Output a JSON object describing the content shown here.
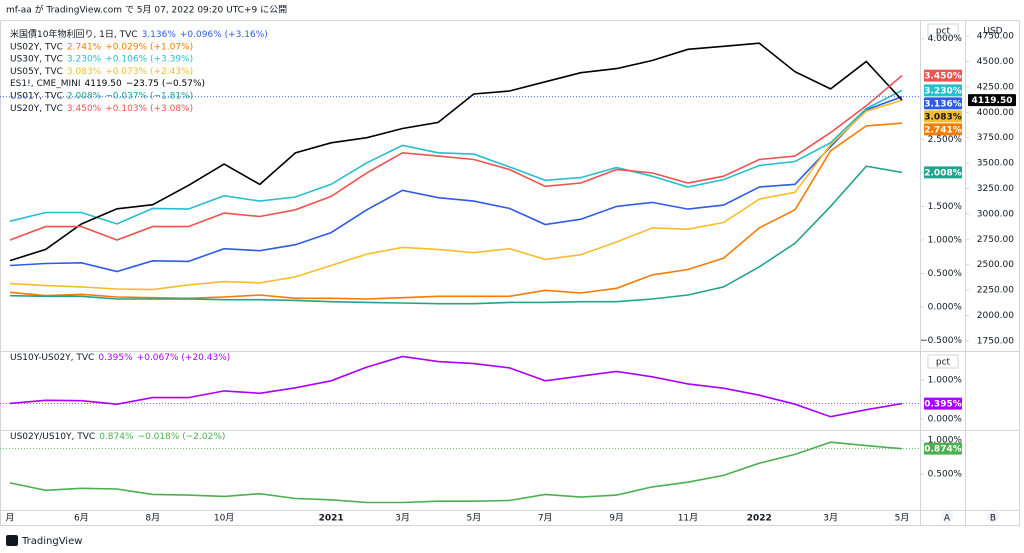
{
  "header": "mf-aa が TradingView.com で 5月 07, 2022 09:20 UTC+9 に公開",
  "footer": "TradingView",
  "buttons": [
    "A",
    "B"
  ],
  "chart_data": [
    {
      "type": "line",
      "y_unit": "pct",
      "y2_unit": "USD",
      "ylim": [
        -0.64,
        4.13
      ],
      "yticks": [
        {
          "value": -0.5,
          "label": "−0.500%"
        },
        {
          "value": 0,
          "label": "0.000%"
        },
        {
          "value": 0.5,
          "label": "0.500%"
        },
        {
          "value": 1,
          "label": "1.000%"
        },
        {
          "value": 1.5,
          "label": "1.500%"
        },
        {
          "value": 2,
          "label": "2.000%"
        },
        {
          "value": 2.5,
          "label": "2.500%"
        },
        {
          "value": 4,
          "label": "4.000%"
        }
      ],
      "y2lim": [
        1660,
        4810
      ],
      "y2ticks": [
        {
          "value": 1750,
          "label": "1750.00"
        },
        {
          "value": 2000,
          "label": "2000.00"
        },
        {
          "value": 2250,
          "label": "2250.00"
        },
        {
          "value": 2500,
          "label": "2500.00"
        },
        {
          "value": 2750,
          "label": "2750.00"
        },
        {
          "value": 3000,
          "label": "3000.00"
        },
        {
          "value": 3250,
          "label": "3250.00"
        },
        {
          "value": 3500,
          "label": "3500.00"
        },
        {
          "value": 3750,
          "label": "3750.00"
        },
        {
          "value": 4000,
          "label": "4000.00"
        },
        {
          "value": 4250,
          "label": "4250.00"
        },
        {
          "value": 4500,
          "label": "4500.00"
        },
        {
          "value": 4750,
          "label": "4750.00"
        }
      ],
      "series": [
        {
          "name": "米国債10年物利回り, 1日, TVC",
          "color": "#2e5ce6",
          "last_label": "3.136%",
          "change": "+0.096% (+3.16%)",
          "values": [
            0.62,
            0.65,
            0.66,
            0.53,
            0.69,
            0.68,
            0.87,
            0.84,
            0.93,
            1.11,
            1.45,
            1.74,
            1.63,
            1.58,
            1.47,
            1.23,
            1.31,
            1.5,
            1.56,
            1.46,
            1.52,
            1.79,
            1.83,
            2.39,
            2.94,
            3.136
          ]
        },
        {
          "name": "US02Y, TVC",
          "color": "#f57c00",
          "last_label": "2.741%",
          "change": "+0.029% (+1.07%)",
          "values": [
            0.22,
            0.17,
            0.19,
            0.15,
            0.14,
            0.13,
            0.15,
            0.18,
            0.13,
            0.13,
            0.12,
            0.14,
            0.16,
            0.16,
            0.16,
            0.25,
            0.21,
            0.28,
            0.48,
            0.56,
            0.73,
            1.18,
            1.45,
            2.33,
            2.7,
            2.741
          ]
        },
        {
          "name": "US30Y, TVC",
          "color": "#26bfcf",
          "last_label": "3.230%",
          "change": "+0.106% (+3.39%)",
          "values": [
            1.28,
            1.41,
            1.41,
            1.24,
            1.47,
            1.46,
            1.66,
            1.58,
            1.64,
            1.83,
            2.15,
            2.41,
            2.3,
            2.28,
            2.09,
            1.89,
            1.93,
            2.08,
            1.95,
            1.79,
            1.9,
            2.11,
            2.17,
            2.45,
            2.96,
            3.23
          ]
        },
        {
          "name": "US05Y, TVC",
          "color": "#f9bc2a",
          "last_label": "3.083%",
          "change": "+0.073% (+2.43%)",
          "values": [
            0.35,
            0.32,
            0.3,
            0.27,
            0.26,
            0.33,
            0.38,
            0.36,
            0.45,
            0.62,
            0.79,
            0.89,
            0.86,
            0.81,
            0.87,
            0.71,
            0.78,
            0.97,
            1.18,
            1.16,
            1.26,
            1.61,
            1.71,
            2.42,
            2.92,
            3.083
          ]
        },
        {
          "name": "ES1!, CME_MINI",
          "color": "#000000",
          "axis": "y2",
          "last_label": "4119.50",
          "change": "−23.75 (−0.57%)",
          "values": [
            2540,
            2650,
            2900,
            3050,
            3090,
            3280,
            3490,
            3290,
            3600,
            3700,
            3750,
            3840,
            3900,
            4180,
            4210,
            4300,
            4390,
            4430,
            4510,
            4620,
            4650,
            4680,
            4400,
            4230,
            4500,
            4119.5
          ]
        },
        {
          "name": "US01Y, TVC",
          "color": "#22a38f",
          "last_label": "2.008%",
          "change": "−0.037% (−1.81%)",
          "values": [
            0.17,
            0.16,
            0.16,
            0.12,
            0.12,
            0.12,
            0.11,
            0.11,
            0.1,
            0.08,
            0.07,
            0.06,
            0.05,
            0.05,
            0.07,
            0.07,
            0.08,
            0.08,
            0.12,
            0.18,
            0.3,
            0.6,
            0.95,
            1.5,
            2.1,
            2.008
          ]
        },
        {
          "name": "US20Y, TVC",
          "color": "#ef5350",
          "last_label": "3.450%",
          "change": "+0.103% (+3.08%)",
          "values": [
            1.0,
            1.2,
            1.2,
            1.0,
            1.2,
            1.2,
            1.4,
            1.35,
            1.45,
            1.65,
            2.0,
            2.3,
            2.25,
            2.2,
            2.05,
            1.8,
            1.85,
            2.05,
            2.0,
            1.85,
            1.95,
            2.2,
            2.25,
            2.6,
            3.0,
            3.45
          ]
        }
      ]
    },
    {
      "type": "line",
      "y_unit": "pct",
      "ylim": [
        -0.28,
        1.69
      ],
      "yticks": [
        {
          "value": 0,
          "label": "0.000%"
        },
        {
          "value": 1,
          "label": "1.000%"
        }
      ],
      "series": [
        {
          "name": "US10Y-US02Y, TVC",
          "color": "#aa00ff",
          "last_label": "0.395%",
          "change": "+0.067% (+20.43%)",
          "values": [
            0.4,
            0.48,
            0.47,
            0.38,
            0.55,
            0.55,
            0.72,
            0.66,
            0.8,
            0.98,
            1.33,
            1.6,
            1.47,
            1.42,
            1.31,
            0.98,
            1.1,
            1.22,
            1.08,
            0.9,
            0.79,
            0.61,
            0.38,
            0.06,
            0.24,
            0.395
          ]
        }
      ]
    },
    {
      "type": "line",
      "ylim": [
        -0.03,
        1.12
      ],
      "yticks": [
        {
          "value": 0.5,
          "label": "0.500%"
        },
        {
          "value": 1,
          "label": "1.000%"
        }
      ],
      "categories": [
        "月",
        null,
        "6月",
        null,
        "8月",
        null,
        "10月",
        null,
        null,
        "2021",
        null,
        "3月",
        null,
        "5月",
        null,
        "7月",
        null,
        "9月",
        null,
        "11月",
        null,
        "2022",
        null,
        "3月",
        null,
        "5月"
      ],
      "series": [
        {
          "name": "US02Y/US10Y, TVC",
          "color": "#4caf50",
          "last_label": "0.874%",
          "change": "−0.018% (−2.02%)",
          "values": [
            0.37,
            0.26,
            0.29,
            0.28,
            0.2,
            0.19,
            0.17,
            0.21,
            0.14,
            0.12,
            0.08,
            0.08,
            0.1,
            0.1,
            0.11,
            0.2,
            0.16,
            0.19,
            0.31,
            0.38,
            0.48,
            0.66,
            0.79,
            0.97,
            0.92,
            0.874
          ]
        }
      ]
    }
  ]
}
